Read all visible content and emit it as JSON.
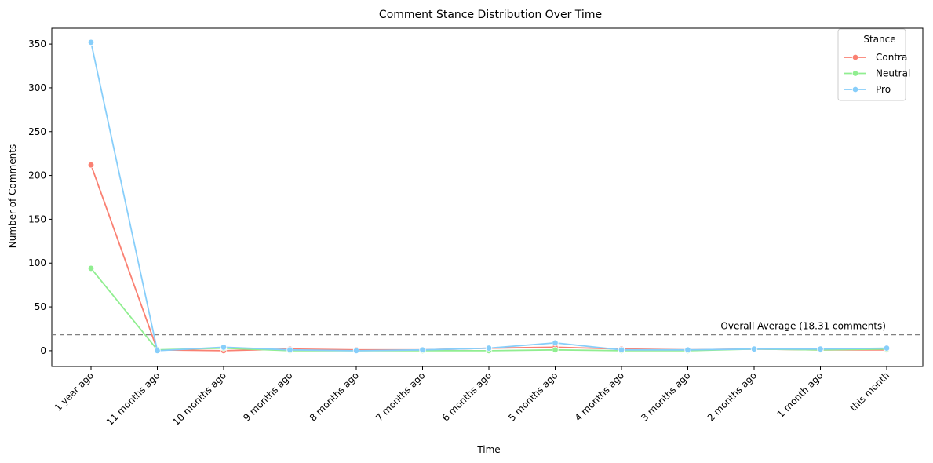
{
  "chart_data": {
    "type": "line",
    "title": "Comment Stance Distribution Over Time",
    "xlabel": "Time",
    "ylabel": "Number of Comments",
    "categories": [
      "1 year ago",
      "11 months ago",
      "10 months ago",
      "9 months ago",
      "8 months ago",
      "7 months ago",
      "6 months ago",
      "5 months ago",
      "4 months ago",
      "3 months ago",
      "2 months ago",
      "1 month ago",
      "this month"
    ],
    "ylim": [
      -18,
      368
    ],
    "yticks": [
      0,
      50,
      100,
      150,
      200,
      250,
      300,
      350
    ],
    "grid": false,
    "legend": {
      "title": "Stance",
      "placement": "top-right"
    },
    "series": [
      {
        "name": "Contra",
        "color": "#fa8072",
        "values": [
          212,
          1,
          0,
          2,
          1,
          1,
          3,
          4,
          2,
          1,
          2,
          1,
          1
        ]
      },
      {
        "name": "Neutral",
        "color": "#90ee90",
        "values": [
          94,
          1,
          3,
          0,
          0,
          0,
          0,
          1,
          0,
          0,
          2,
          1,
          2
        ]
      },
      {
        "name": "Pro",
        "color": "#87cefa",
        "values": [
          352,
          0,
          4,
          1,
          0,
          1,
          3,
          9,
          1,
          1,
          2,
          2,
          3
        ]
      }
    ],
    "reference_line": {
      "value": 18.31,
      "label": "Overall Average (18.31 comments)",
      "color": "#808080",
      "style": "dashed"
    }
  }
}
